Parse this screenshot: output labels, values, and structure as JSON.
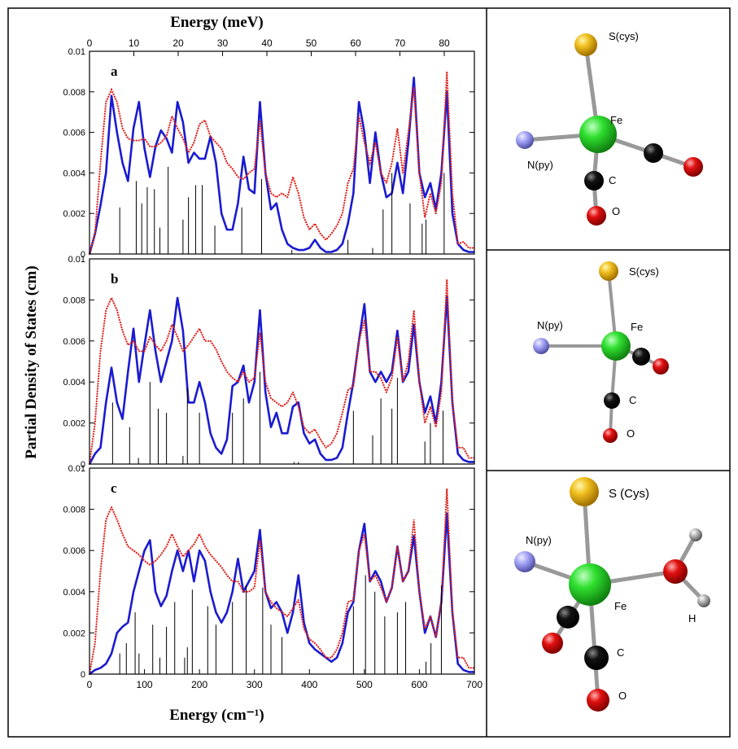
{
  "chart_data": [
    {
      "type": "line",
      "label": "a",
      "x2label": "Energy (meV)",
      "x2lim": [
        0,
        86.79
      ],
      "x2ticks": [
        0,
        10,
        20,
        30,
        40,
        50,
        60,
        70,
        80
      ],
      "xlim": [
        0,
        700
      ],
      "ylim": [
        0,
        0.01
      ],
      "yticks": [
        0,
        0.002,
        0.004,
        0.006,
        0.008,
        0.01
      ],
      "x": [
        0,
        10,
        20,
        30,
        40,
        50,
        60,
        70,
        80,
        90,
        100,
        110,
        120,
        130,
        140,
        150,
        160,
        170,
        180,
        190,
        200,
        210,
        220,
        230,
        240,
        250,
        260,
        270,
        280,
        290,
        300,
        310,
        320,
        330,
        340,
        350,
        360,
        370,
        380,
        390,
        400,
        410,
        420,
        430,
        440,
        450,
        460,
        470,
        480,
        490,
        500,
        510,
        520,
        530,
        540,
        550,
        560,
        570,
        580,
        590,
        600,
        610,
        620,
        630,
        640,
        650,
        660,
        670,
        680,
        690,
        700
      ],
      "series": [
        {
          "color": "#1a1ad0",
          "style": "solid",
          "values": [
            0,
            0.001,
            0.0024,
            0.004,
            0.0078,
            0.006,
            0.0045,
            0.0036,
            0.0062,
            0.0075,
            0.0052,
            0.0038,
            0.0053,
            0.0061,
            0.0057,
            0.005,
            0.0075,
            0.0065,
            0.0045,
            0.005,
            0.0047,
            0.0047,
            0.0058,
            0.0045,
            0.002,
            0.0012,
            0.0012,
            0.0025,
            0.0048,
            0.0032,
            0.003,
            0.0075,
            0.004,
            0.0022,
            0.0025,
            0.0012,
            0.0005,
            0.0003,
            0.0002,
            0.0002,
            0.0003,
            0.0007,
            0.0003,
            0.0001,
            0.0001,
            0.0002,
            0.0005,
            0.0015,
            0.003,
            0.0075,
            0.006,
            0.0035,
            0.006,
            0.004,
            0.0028,
            0.003,
            0.0045,
            0.003,
            0.0055,
            0.0087,
            0.004,
            0.0028,
            0.0035,
            0.0022,
            0.004,
            0.008,
            0.002,
            0.0005,
            0.0002,
            0.0001,
            0.0001
          ]
        },
        {
          "color": "#e0201a",
          "style": "dotted",
          "values": [
            0,
            0.001,
            0.0045,
            0.0075,
            0.0081,
            0.0075,
            0.0062,
            0.0057,
            0.0056,
            0.0056,
            0.0057,
            0.0053,
            0.0053,
            0.0055,
            0.0058,
            0.0068,
            0.0062,
            0.0057,
            0.005,
            0.0055,
            0.0064,
            0.0066,
            0.0058,
            0.0055,
            0.0052,
            0.0045,
            0.0042,
            0.0038,
            0.0037,
            0.004,
            0.0042,
            0.0066,
            0.004,
            0.003,
            0.0028,
            0.003,
            0.0028,
            0.0038,
            0.003,
            0.0018,
            0.0012,
            0.0015,
            0.001,
            0.0007,
            0.001,
            0.0014,
            0.002,
            0.0035,
            0.0042,
            0.0068,
            0.0055,
            0.0045,
            0.0055,
            0.004,
            0.0035,
            0.0045,
            0.0062,
            0.004,
            0.006,
            0.0082,
            0.004,
            0.0018,
            0.003,
            0.002,
            0.0035,
            0.009,
            0.003,
            0.0005,
            0.0006,
            0.0003,
            0.0003
          ]
        },
        {
          "color": "#000000",
          "style": "sticks",
          "x": [
            55,
            85,
            95,
            105,
            118,
            128,
            143,
            170,
            180,
            193,
            205,
            228,
            277,
            313,
            368,
            470,
            515,
            534,
            550,
            583,
            605,
            612,
            645
          ],
          "values": [
            0.0023,
            0.0036,
            0.0025,
            0.0033,
            0.0032,
            0.0013,
            0.0043,
            0.0017,
            0.0028,
            0.0034,
            0.0034,
            0.0014,
            0.0023,
            0.0037,
            0.0002,
            0.0007,
            0.0003,
            0.0022,
            0.004,
            0.0025,
            0.0015,
            0.0017,
            0.004
          ]
        }
      ]
    },
    {
      "type": "line",
      "label": "b",
      "ylabel": "Partial Density of States (cm)",
      "xlim": [
        0,
        700
      ],
      "ylim": [
        0,
        0.01
      ],
      "yticks": [
        0,
        0.002,
        0.004,
        0.006,
        0.008,
        0.01
      ],
      "x": [
        0,
        10,
        20,
        30,
        40,
        50,
        60,
        70,
        80,
        90,
        100,
        110,
        120,
        130,
        140,
        150,
        160,
        170,
        180,
        190,
        200,
        210,
        220,
        230,
        240,
        250,
        260,
        270,
        280,
        290,
        300,
        310,
        320,
        330,
        340,
        350,
        360,
        370,
        380,
        390,
        400,
        410,
        420,
        430,
        440,
        450,
        460,
        470,
        480,
        490,
        500,
        510,
        520,
        530,
        540,
        550,
        560,
        570,
        580,
        590,
        600,
        610,
        620,
        630,
        640,
        650,
        660,
        670,
        680,
        690,
        700
      ],
      "series": [
        {
          "color": "#1a1ad0",
          "style": "solid",
          "values": [
            0,
            0.0005,
            0.0008,
            0.003,
            0.0047,
            0.003,
            0.0022,
            0.0045,
            0.0066,
            0.004,
            0.0058,
            0.0075,
            0.0055,
            0.004,
            0.005,
            0.006,
            0.0081,
            0.0065,
            0.003,
            0.003,
            0.004,
            0.003,
            0.0015,
            0.0008,
            0.0005,
            0.0012,
            0.0038,
            0.004,
            0.0048,
            0.003,
            0.004,
            0.0075,
            0.0035,
            0.0018,
            0.0025,
            0.0015,
            0.0015,
            0.0028,
            0.003,
            0.0015,
            0.001,
            0.0012,
            0.0005,
            0.0002,
            0.0002,
            0.0003,
            0.0008,
            0.0025,
            0.004,
            0.006,
            0.0078,
            0.0045,
            0.004,
            0.0045,
            0.004,
            0.0045,
            0.0065,
            0.004,
            0.0045,
            0.0068,
            0.004,
            0.0025,
            0.0033,
            0.002,
            0.004,
            0.0082,
            0.003,
            0.0005,
            0.0002,
            0.0001,
            0.0001
          ]
        },
        {
          "color": "#e0201a",
          "style": "dotted",
          "values": [
            0,
            0.002,
            0.0055,
            0.0075,
            0.0081,
            0.0075,
            0.0065,
            0.0058,
            0.006,
            0.0055,
            0.0055,
            0.0062,
            0.0058,
            0.0055,
            0.006,
            0.0068,
            0.0062,
            0.0055,
            0.0058,
            0.0062,
            0.0066,
            0.006,
            0.006,
            0.0056,
            0.005,
            0.0045,
            0.0042,
            0.004,
            0.0045,
            0.004,
            0.0042,
            0.0064,
            0.004,
            0.0032,
            0.003,
            0.0028,
            0.003,
            0.0035,
            0.0028,
            0.0018,
            0.0015,
            0.0017,
            0.0012,
            0.0008,
            0.001,
            0.0015,
            0.0025,
            0.0036,
            0.0038,
            0.006,
            0.007,
            0.0045,
            0.0045,
            0.0042,
            0.0035,
            0.0042,
            0.0062,
            0.004,
            0.005,
            0.0075,
            0.004,
            0.002,
            0.0028,
            0.0018,
            0.0035,
            0.009,
            0.003,
            0.0008,
            0.0008,
            0.0003,
            0.0003
          ]
        },
        {
          "color": "#000000",
          "style": "sticks",
          "x": [
            42,
            73,
            89,
            110,
            125,
            140,
            170,
            178,
            200,
            260,
            280,
            310,
            372,
            380,
            480,
            515,
            530,
            550,
            560,
            610,
            620,
            643
          ],
          "values": [
            0.003,
            0.0018,
            0.0003,
            0.004,
            0.0027,
            0.0025,
            0.0004,
            0.0037,
            0.0025,
            0.0025,
            0.0032,
            0.0045,
            0.0001,
            0.0001,
            0.0026,
            0.0014,
            0.0032,
            0.0027,
            0.0042,
            0.0011,
            0.002,
            0.0026
          ]
        }
      ]
    },
    {
      "type": "line",
      "label": "c",
      "xlabel": "Energy (cm⁻¹)",
      "xlim": [
        0,
        700
      ],
      "xticks": [
        0,
        100,
        200,
        300,
        400,
        500,
        600,
        700
      ],
      "ylim": [
        0,
        0.01
      ],
      "yticks": [
        0,
        0.002,
        0.004,
        0.006,
        0.008,
        0.01
      ],
      "x": [
        0,
        10,
        20,
        30,
        40,
        50,
        60,
        70,
        80,
        90,
        100,
        110,
        120,
        130,
        140,
        150,
        160,
        170,
        180,
        190,
        200,
        210,
        220,
        230,
        240,
        250,
        260,
        270,
        280,
        290,
        300,
        310,
        320,
        330,
        340,
        350,
        360,
        370,
        380,
        390,
        400,
        410,
        420,
        430,
        440,
        450,
        460,
        470,
        480,
        490,
        500,
        510,
        520,
        530,
        540,
        550,
        560,
        570,
        580,
        590,
        600,
        610,
        620,
        630,
        640,
        650,
        660,
        670,
        680,
        690,
        700
      ],
      "series": [
        {
          "color": "#1a1ad0",
          "style": "solid",
          "values": [
            0,
            0.0002,
            0.0003,
            0.0005,
            0.001,
            0.002,
            0.0023,
            0.0025,
            0.004,
            0.005,
            0.006,
            0.0065,
            0.004,
            0.0033,
            0.0038,
            0.005,
            0.006,
            0.005,
            0.006,
            0.0045,
            0.006,
            0.0055,
            0.004,
            0.003,
            0.0025,
            0.003,
            0.004,
            0.0056,
            0.004,
            0.0045,
            0.005,
            0.007,
            0.004,
            0.0032,
            0.0035,
            0.003,
            0.002,
            0.003,
            0.0048,
            0.0025,
            0.0015,
            0.0012,
            0.001,
            0.0008,
            0.0006,
            0.0008,
            0.0015,
            0.003,
            0.0035,
            0.006,
            0.0073,
            0.0045,
            0.005,
            0.0045,
            0.0035,
            0.0042,
            0.0062,
            0.0045,
            0.005,
            0.0067,
            0.004,
            0.002,
            0.0028,
            0.0018,
            0.0035,
            0.0078,
            0.003,
            0.0005,
            0.0002,
            0.0001,
            0.0001
          ]
        },
        {
          "color": "#e0201a",
          "style": "dotted",
          "values": [
            0,
            0.0015,
            0.005,
            0.0075,
            0.0081,
            0.0075,
            0.0068,
            0.0062,
            0.006,
            0.0058,
            0.0055,
            0.0053,
            0.0055,
            0.0058,
            0.0062,
            0.0068,
            0.0062,
            0.0057,
            0.006,
            0.0063,
            0.0068,
            0.0062,
            0.0058,
            0.0055,
            0.0052,
            0.0048,
            0.0045,
            0.0045,
            0.004,
            0.004,
            0.0042,
            0.0065,
            0.004,
            0.0035,
            0.0032,
            0.003,
            0.0028,
            0.0032,
            0.0036,
            0.0022,
            0.0017,
            0.0015,
            0.0012,
            0.0008,
            0.0008,
            0.0012,
            0.002,
            0.0035,
            0.0036,
            0.006,
            0.0068,
            0.0045,
            0.0048,
            0.0042,
            0.0035,
            0.0042,
            0.0062,
            0.0045,
            0.005,
            0.0075,
            0.004,
            0.0022,
            0.0028,
            0.0018,
            0.0035,
            0.009,
            0.003,
            0.0008,
            0.0008,
            0.0003,
            0.0003
          ]
        },
        {
          "color": "#000000",
          "style": "sticks",
          "x": [
            55,
            67,
            83,
            90,
            115,
            128,
            140,
            155,
            173,
            178,
            187,
            215,
            230,
            260,
            285,
            315,
            330,
            350,
            480,
            502,
            519,
            537,
            560,
            575,
            612,
            621,
            640
          ],
          "values": [
            0.001,
            0.0015,
            0.003,
            0.001,
            0.0024,
            0.0008,
            0.0023,
            0.0035,
            0.0008,
            0.0013,
            0.0041,
            0.0033,
            0.0024,
            0.0035,
            0.0043,
            0.0042,
            0.0024,
            0.0018,
            0.0033,
            0.0048,
            0.004,
            0.0028,
            0.003,
            0.0035,
            0.0006,
            0.0015,
            0.0043
          ]
        }
      ]
    }
  ],
  "molecules": [
    {
      "labels": [
        "S(cys)",
        "Fe",
        "N(py)",
        "C",
        "O"
      ]
    },
    {
      "labels": [
        "S(cys)",
        "N(py)",
        "Fe",
        "C",
        "O"
      ]
    },
    {
      "labels": [
        "S (Cys)",
        "N(py)",
        "Fe",
        "H",
        "C",
        "O"
      ]
    }
  ]
}
